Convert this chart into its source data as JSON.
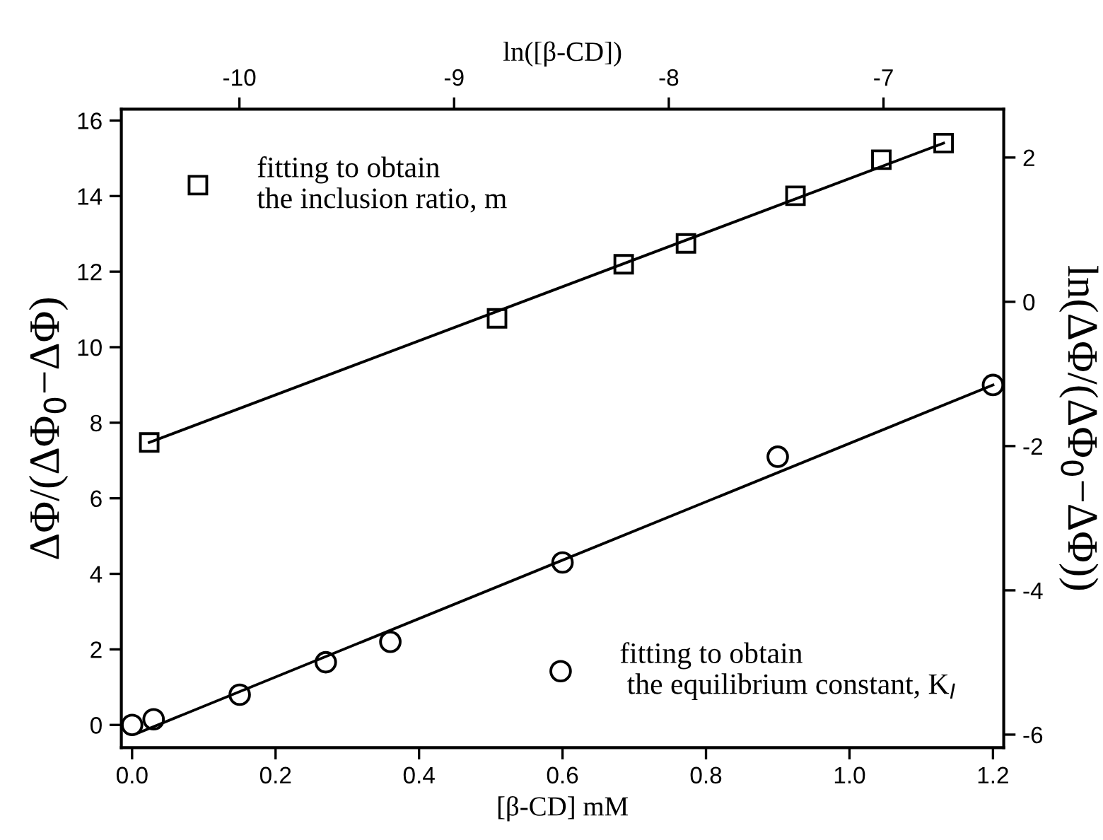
{
  "chart_data": [
    {
      "type": "scatter",
      "xlabel": "[β-CD] mM",
      "ylabel": "ΔΦ/(ΔΦ$_{0}$−ΔΦ)",
      "xlim": [
        -0.015,
        1.215
      ],
      "xticks": [
        {
          "value": 0,
          "label": "0.0"
        },
        {
          "value": 0.2,
          "label": "0.2"
        },
        {
          "value": 0.4,
          "label": "0.4"
        },
        {
          "value": 0.6,
          "label": "0.6"
        },
        {
          "value": 0.8,
          "label": "0.8"
        },
        {
          "value": 1.0,
          "label": "1.0"
        },
        {
          "value": 1.2,
          "label": "1.2"
        }
      ],
      "ylim": [
        -0.6,
        16.3
      ],
      "yticks": [
        0,
        2,
        4,
        6,
        8,
        10,
        12,
        14,
        16
      ],
      "grid": false,
      "legend": "bottom right",
      "series": [
        {
          "name": "fitting to obtain\n the equilibrium constant, K$_{I}$",
          "type": "scatter",
          "marker": "circle",
          "color": "#000000",
          "x": [
            0.0,
            0.03,
            0.15,
            0.27,
            0.36,
            0.6,
            0.9,
            1.2
          ],
          "values": [
            0.0,
            0.15,
            0.8,
            1.66,
            2.2,
            4.3,
            7.1,
            9.0
          ]
        },
        {
          "type": "line",
          "line_style": "solid",
          "color": "#000000",
          "x": [
            0.01,
            1.2
          ],
          "values": [
            -0.2,
            9.0
          ]
        }
      ]
    },
    {
      "type": "scatter",
      "xlabel": "ln([β-CD])",
      "ylabel": "ln(ΔΦ/(ΔΦ$_{0}$−ΔΦ))",
      "xlim": [
        -10.55,
        -6.44
      ],
      "xticks": [
        -10,
        -9,
        -8,
        -7
      ],
      "ylim": [
        -6.18,
        2.67
      ],
      "yticks": [
        -6,
        -4,
        -2,
        0,
        2
      ],
      "grid": false,
      "legend": "top left",
      "series": [
        {
          "name": "fitting to obtain\nthe inclusion ratio, m",
          "type": "scatter",
          "marker": "square",
          "color": "#000000",
          "x": [
            -10.42,
            -8.8,
            -8.21,
            -7.92,
            -7.41,
            -7.01,
            -6.72
          ],
          "values": [
            -1.95,
            -0.23,
            0.52,
            0.81,
            1.47,
            1.97,
            2.2
          ]
        },
        {
          "type": "line",
          "line_style": "solid",
          "color": "#000000",
          "x": [
            -10.42,
            -6.72
          ],
          "values": [
            -1.95,
            2.2
          ]
        }
      ]
    }
  ]
}
